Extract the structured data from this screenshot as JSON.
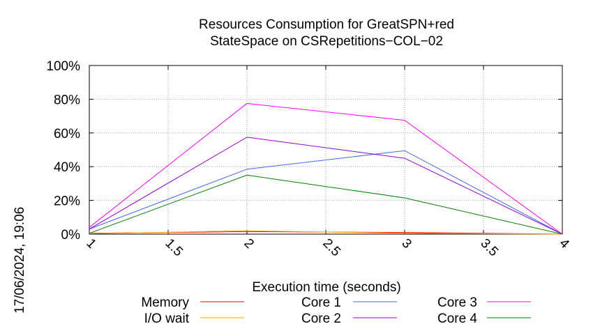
{
  "chart_data": {
    "type": "line",
    "title": [
      "Resources Consumption for GreatSPN+red",
      "StateSpace on CSRepetitions−COL−02"
    ],
    "xlabel": "Execution time (seconds)",
    "ylabel": "",
    "xlim": [
      1,
      4
    ],
    "ylim": [
      0,
      100
    ],
    "grid": true,
    "legend_position": "bottom",
    "x_ticks": [
      1,
      1.5,
      2,
      2.5,
      3,
      3.5,
      4
    ],
    "x_tick_labels": [
      "1",
      "1.5",
      "2",
      "2.5",
      "3",
      "3.5",
      "4"
    ],
    "y_ticks": [
      0,
      20,
      40,
      60,
      80,
      100
    ],
    "y_tick_labels": [
      "0%",
      "20%",
      "40%",
      "60%",
      "80%",
      "100%"
    ],
    "timestamp": "17/06/2024, 19:06",
    "series": [
      {
        "name": "Memory",
        "color": "#ff0000",
        "x": [
          1,
          2,
          3,
          4
        ],
        "values": [
          0.5,
          1.5,
          1,
          0
        ]
      },
      {
        "name": "I/O wait",
        "color": "#ffa500",
        "x": [
          1,
          2,
          3,
          4
        ],
        "values": [
          0.3,
          2,
          0.5,
          0
        ]
      },
      {
        "name": "Core 1",
        "color": "#4169e1",
        "x": [
          1,
          2,
          3,
          4
        ],
        "values": [
          3,
          38.5,
          49.5,
          0
        ]
      },
      {
        "name": "Core 2",
        "color": "#9400d3",
        "x": [
          1,
          2,
          3,
          4
        ],
        "values": [
          3,
          57.5,
          45,
          0
        ]
      },
      {
        "name": "Core 3",
        "color": "#ff00ff",
        "x": [
          1,
          2,
          3,
          4
        ],
        "values": [
          4,
          77.5,
          67.5,
          0
        ]
      },
      {
        "name": "Core 4",
        "color": "#008000",
        "x": [
          1,
          2,
          3,
          4
        ],
        "values": [
          0.5,
          35,
          21.5,
          0
        ]
      }
    ]
  }
}
